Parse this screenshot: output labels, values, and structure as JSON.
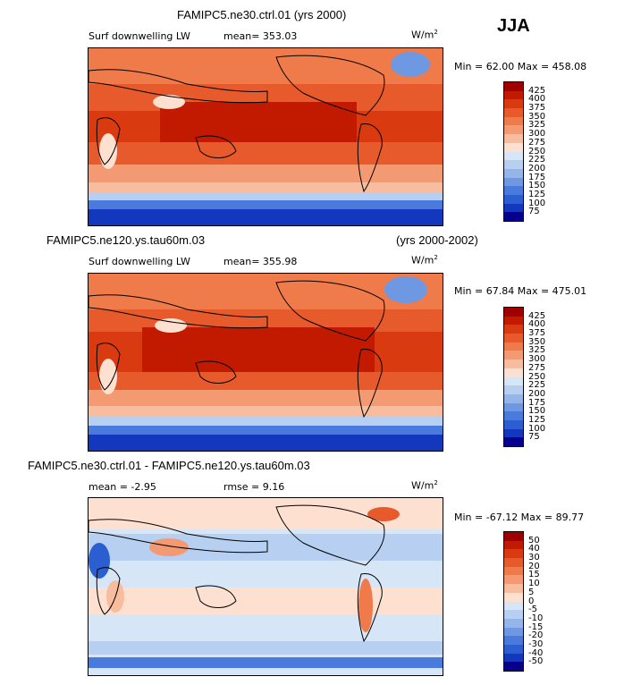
{
  "season": "JJA",
  "panels": [
    {
      "title": "FAMIPC5.ne30.ctrl.01 (yrs 2000)",
      "title_right": "",
      "variable": "Surf downwelling LW",
      "stat1": "mean= 353.03",
      "stat2": "",
      "units": "W/m",
      "units_exp": "2",
      "minmax": "Min =   62.00 Max = 458.08",
      "levels": [
        "425",
        "400",
        "375",
        "350",
        "325",
        "300",
        "275",
        "250",
        "225",
        "200",
        "175",
        "150",
        "125",
        "100",
        "75"
      ],
      "colors": [
        "#9e0000",
        "#c11a00",
        "#d93a10",
        "#e65a2b",
        "#ef7a4a",
        "#f39a73",
        "#f7bd9e",
        "#fde0cf",
        "#d7e6f7",
        "#b7cff0",
        "#94b5ea",
        "#6f98e3",
        "#4a7bdc",
        "#2a5ed1",
        "#1438bd",
        "#06008c"
      ]
    },
    {
      "title": "FAMIPC5.ne120.ys.tau60m.03",
      "title_right": "(yrs 2000-2002)",
      "variable": "Surf downwelling LW",
      "stat1": "mean= 355.98",
      "stat2": "",
      "units": "W/m",
      "units_exp": "2",
      "minmax": "Min =   67.84 Max = 475.01",
      "levels": [
        "425",
        "400",
        "375",
        "350",
        "325",
        "300",
        "275",
        "250",
        "225",
        "200",
        "175",
        "150",
        "125",
        "100",
        "75"
      ],
      "colors": [
        "#9e0000",
        "#c11a00",
        "#d93a10",
        "#e65a2b",
        "#ef7a4a",
        "#f39a73",
        "#f7bd9e",
        "#fde0cf",
        "#d7e6f7",
        "#b7cff0",
        "#94b5ea",
        "#6f98e3",
        "#4a7bdc",
        "#2a5ed1",
        "#1438bd",
        "#06008c"
      ]
    },
    {
      "title": "FAMIPC5.ne30.ctrl.01 - FAMIPC5.ne120.ys.tau60m.03",
      "title_right": "",
      "variable": "mean =   -2.95",
      "stat1": "rmse =    9.16",
      "stat2": "",
      "units": "W/m",
      "units_exp": "2",
      "minmax": "Min = -67.12 Max =  89.77",
      "levels": [
        "50",
        "40",
        "30",
        "20",
        "15",
        "10",
        "5",
        "0",
        "-5",
        "-10",
        "-15",
        "-20",
        "-30",
        "-40",
        "-50"
      ],
      "colors": [
        "#9e0000",
        "#c11a00",
        "#d93a10",
        "#e65a2b",
        "#ef7a4a",
        "#f39a73",
        "#f7bd9e",
        "#fde0cf",
        "#d7e6f7",
        "#b7cff0",
        "#94b5ea",
        "#6f98e3",
        "#4a7bdc",
        "#2a5ed1",
        "#1438bd",
        "#06008c"
      ]
    }
  ]
}
